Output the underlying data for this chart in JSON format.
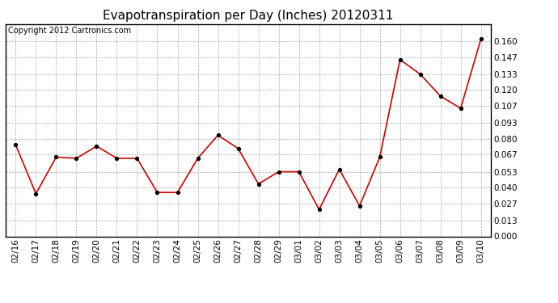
{
  "title": "Evapotranspiration per Day (Inches) 20120311",
  "copyright": "Copyright 2012 Cartronics.com",
  "x_labels": [
    "02/16",
    "02/17",
    "02/18",
    "02/19",
    "02/20",
    "02/21",
    "02/22",
    "02/23",
    "02/24",
    "02/25",
    "02/26",
    "02/27",
    "02/28",
    "02/29",
    "03/01",
    "03/02",
    "03/03",
    "03/04",
    "03/05",
    "03/06",
    "03/07",
    "03/08",
    "03/09",
    "03/10"
  ],
  "y_values": [
    0.075,
    0.035,
    0.065,
    0.064,
    0.074,
    0.064,
    0.064,
    0.036,
    0.036,
    0.064,
    0.083,
    0.072,
    0.043,
    0.053,
    0.053,
    0.022,
    0.055,
    0.025,
    0.065,
    0.145,
    0.133,
    0.115,
    0.105,
    0.162
  ],
  "line_color": "#cc0000",
  "marker_color": "#000000",
  "background_color": "#ffffff",
  "grid_color": "#aaaaaa",
  "ylim": [
    0.0,
    0.174
  ],
  "yticks": [
    0.0,
    0.013,
    0.027,
    0.04,
    0.053,
    0.067,
    0.08,
    0.093,
    0.107,
    0.12,
    0.133,
    0.147,
    0.16
  ],
  "title_fontsize": 11,
  "copyright_fontsize": 7,
  "tick_fontsize": 7.5
}
